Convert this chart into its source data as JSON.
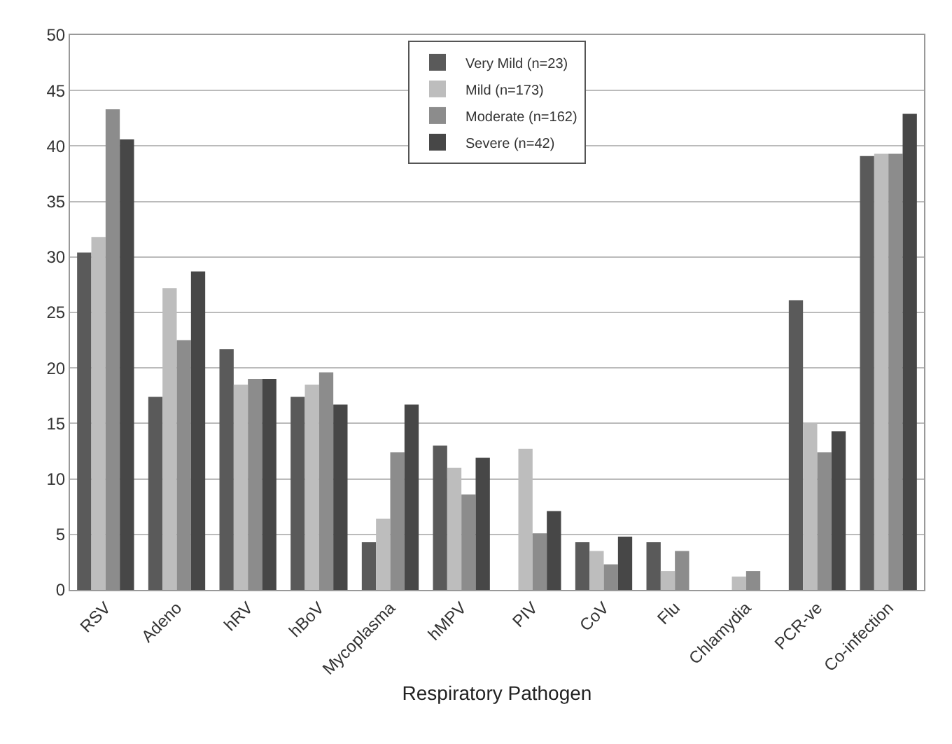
{
  "chart_data": {
    "type": "bar",
    "xlabel": "Respiratory Pathogen",
    "categories": [
      "RSV",
      "Adeno",
      "hRV",
      "hBoV",
      "Mycoplasma",
      "hMPV",
      "PIV",
      "CoV",
      "Flu",
      "Chlamydia",
      "PCR-ve",
      "Co-infection"
    ],
    "series": [
      {
        "name": "Very Mild (n=23)",
        "color": "#5a5a5a",
        "values": [
          30.4,
          17.4,
          21.7,
          17.4,
          4.3,
          13.0,
          0,
          4.3,
          4.3,
          0,
          26.1,
          39.1
        ]
      },
      {
        "name": "Mild (n=173)",
        "color": "#bdbdbd",
        "values": [
          31.8,
          27.2,
          18.5,
          18.5,
          6.4,
          11.0,
          12.7,
          3.5,
          1.7,
          1.2,
          15.0,
          39.3
        ]
      },
      {
        "name": "Moderate (n=162)",
        "color": "#8c8c8c",
        "values": [
          43.3,
          22.5,
          19.0,
          19.6,
          12.4,
          8.6,
          5.1,
          2.3,
          3.5,
          1.7,
          12.4,
          39.3
        ]
      },
      {
        "name": "Severe (n=42)",
        "color": "#474747",
        "values": [
          40.6,
          28.7,
          19.0,
          16.7,
          16.7,
          11.9,
          7.1,
          4.8,
          0,
          0,
          14.3,
          42.9
        ]
      }
    ],
    "ylim": [
      0,
      50
    ],
    "yticks": [
      0,
      5,
      10,
      15,
      20,
      25,
      30,
      35,
      40,
      45,
      50
    ],
    "grid": "y",
    "legend": "top"
  }
}
